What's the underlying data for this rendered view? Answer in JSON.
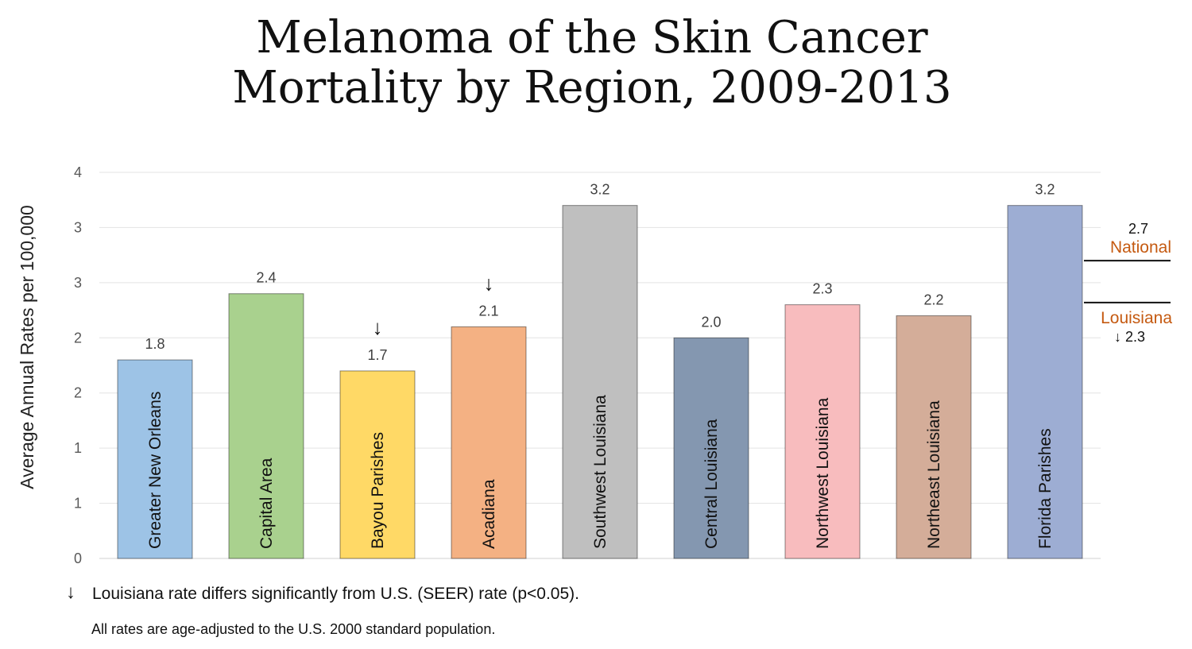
{
  "chart_data": {
    "type": "bar",
    "title": [
      "Melanoma of the Skin Cancer",
      "Mortality by Region, 2009-2013"
    ],
    "ylabel": "Average Annual Rates per 100,000",
    "y_ticks": [
      "0",
      "1",
      "1",
      "2",
      "2",
      "3",
      "3",
      "4"
    ],
    "ylim": [
      0,
      3.5
    ],
    "categories": [
      "Greater New Orleans",
      "Capital Area",
      "Bayou Parishes",
      "Acadiana",
      "Southwest Louisiana",
      "Central Louisiana",
      "Northwest Louisiana",
      "Northeast Louisiana",
      "Florida Parishes"
    ],
    "values": [
      1.8,
      2.4,
      1.7,
      2.1,
      3.2,
      2.0,
      2.3,
      2.2,
      3.2
    ],
    "bar_heights": [
      1.8,
      2.4,
      1.7,
      2.1,
      3.2,
      2.0,
      2.3,
      2.2,
      3.2
    ],
    "value_labels": [
      "1.8",
      "2.4",
      "1.7",
      "2.1",
      "3.2",
      "2.0",
      "2.3",
      "2.2",
      "3.2"
    ],
    "significant": [
      false,
      false,
      true,
      true,
      false,
      false,
      false,
      false,
      false
    ],
    "significance_marker": "↓",
    "colors": [
      "#9dc3e6",
      "#a9d18e",
      "#ffd966",
      "#f4b183",
      "#bfbfbf",
      "#8497b0",
      "#f8bcbe",
      "#d4ad99",
      "#9dadd3"
    ],
    "reference_lines": [
      {
        "name": "National",
        "value": 2.7,
        "label": "2.7",
        "level": 2.7
      },
      {
        "name": "Louisiana",
        "value": 2.3,
        "label": "↓ 2.3",
        "level": 2.32
      }
    ],
    "footnotes": [
      "Louisiana rate differs significantly from U.S. (SEER) rate (p<0.05).",
      "All rates are age-adjusted to the U.S. 2000 standard population."
    ]
  }
}
